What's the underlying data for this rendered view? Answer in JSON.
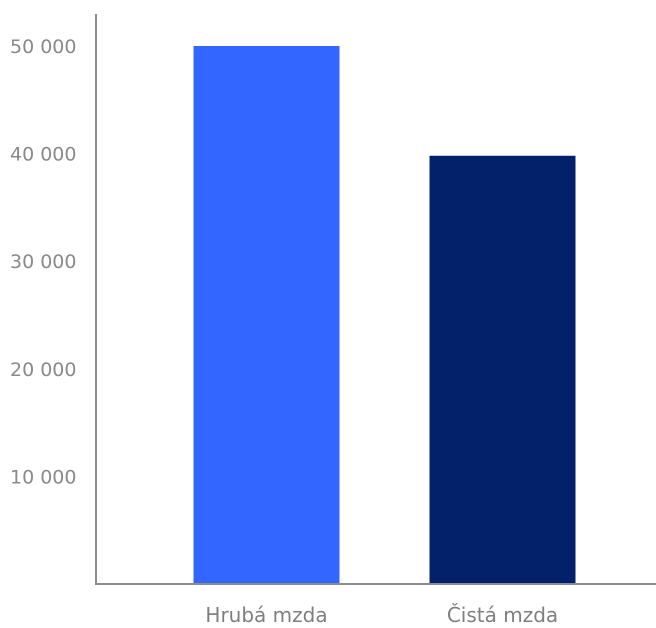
{
  "chart_data": {
    "type": "bar",
    "categories": [
      "Hrubá mzda",
      "Čistá mzda"
    ],
    "values": [
      50000,
      39800
    ],
    "colors": [
      "#3366ff",
      "#03216b"
    ],
    "ylim": [
      0,
      50000
    ],
    "yticks": [
      {
        "value": 10000,
        "label": "10 000"
      },
      {
        "value": 20000,
        "label": "20 000"
      },
      {
        "value": 30000,
        "label": "30 000"
      },
      {
        "value": 40000,
        "label": "40 000"
      },
      {
        "value": 50000,
        "label": "50 000"
      }
    ],
    "title": "",
    "xlabel": "",
    "ylabel": "",
    "grid": false,
    "axis_color": "#8c8c8c",
    "tick_label_color": "#8a8a8a"
  }
}
